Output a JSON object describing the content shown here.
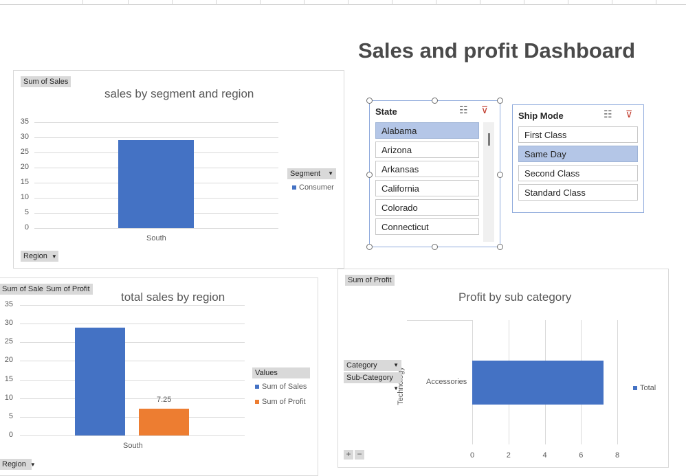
{
  "dashboard": {
    "title": "Sales and profit Dashboard"
  },
  "chart1": {
    "field_button": "Sum of Sales",
    "region_button": "Region",
    "segment_button": "Segment",
    "legend": [
      "Consumer"
    ]
  },
  "chart2": {
    "field_buttons": [
      "Sum of Sales",
      "Sum of Profit"
    ],
    "region_button": "Region",
    "legend_title": "Values",
    "legend": [
      "Sum of Sales",
      "Sum of Profit"
    ]
  },
  "chart3": {
    "field_button": "Sum of Profit",
    "category_button": "Category",
    "subcategory_button": "Sub-Category",
    "legend": [
      "Total"
    ],
    "zoom_in": "+",
    "zoom_out": "−"
  },
  "slicer_state": {
    "title": "State",
    "items": [
      "Alabama",
      "Arizona",
      "Arkansas",
      "California",
      "Colorado",
      "Connecticut"
    ],
    "selected": "Alabama"
  },
  "slicer_shipmode": {
    "title": "Ship Mode",
    "items": [
      "First Class",
      "Same Day",
      "Second Class",
      "Standard Class"
    ],
    "selected": "Same Day"
  },
  "icons": {
    "multiselect": "multiselect-icon",
    "clear_filter": "clear-filter-icon"
  },
  "colors": {
    "blue": "#4472c4",
    "orange": "#ed7d31",
    "slicer_selected": "#b4c6e7"
  },
  "chart_data": [
    {
      "type": "bar",
      "title": "sales by segment and region",
      "categories": [
        "South"
      ],
      "series": [
        {
          "name": "Consumer",
          "values": [
            29
          ]
        }
      ],
      "yticks": [
        "0",
        "5",
        "10",
        "15",
        "20",
        "25",
        "30",
        "35"
      ],
      "ylim": [
        0,
        35
      ],
      "grid": true,
      "legend": "right"
    },
    {
      "type": "bar",
      "title": "total sales by region",
      "categories": [
        "South"
      ],
      "series": [
        {
          "name": "Sum of Sales",
          "values": [
            29
          ]
        },
        {
          "name": "Sum of Profit",
          "values": [
            7.25
          ]
        }
      ],
      "data_labels": [
        "7.25"
      ],
      "yticks": [
        "0",
        "5",
        "10",
        "15",
        "20",
        "25",
        "30",
        "35"
      ],
      "ylim": [
        0,
        35
      ],
      "grid": true,
      "legend": "right"
    },
    {
      "type": "bar",
      "orientation": "horizontal",
      "title": "Profit by sub category",
      "categories": [
        "Accessories"
      ],
      "group": "Technology",
      "series": [
        {
          "name": "Total",
          "values": [
            7.25
          ]
        }
      ],
      "xticks": [
        "0",
        "2",
        "4",
        "6",
        "8"
      ],
      "xlim": [
        0,
        8
      ],
      "grid": true,
      "legend": "right"
    }
  ]
}
